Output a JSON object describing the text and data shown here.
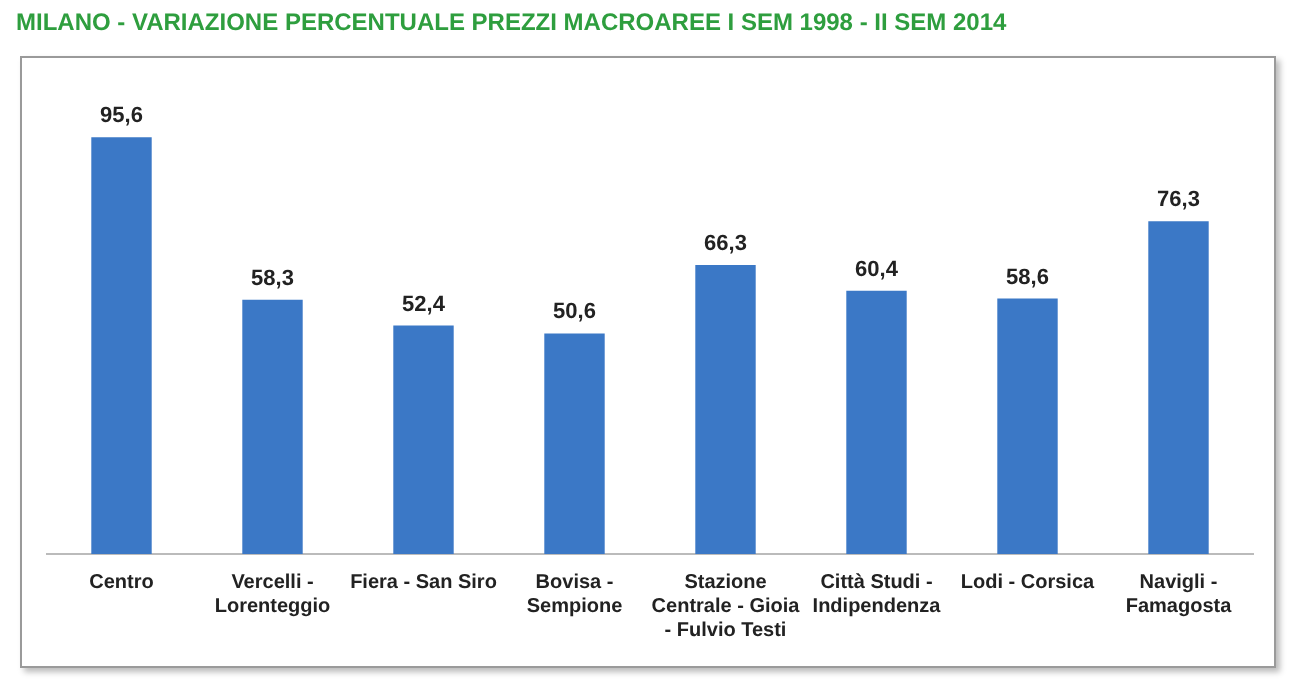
{
  "chart_data": {
    "type": "bar",
    "title": "MILANO - VARIAZIONE PERCENTUALE PREZZI MACROAREE I SEM 1998 - II SEM 2014",
    "categories": [
      "Centro",
      "Vercelli - Lorenteggio",
      "Fiera - San Siro",
      "Bovisa - Sempione",
      "Stazione Centrale - Gioia - Fulvio Testi",
      "Città Studi - Indipendenza",
      "Lodi - Corsica",
      "Navigli - Famagosta"
    ],
    "values": [
      95.6,
      58.3,
      52.4,
      50.6,
      66.3,
      60.4,
      58.6,
      76.3
    ],
    "value_labels": [
      "95,6",
      "58,3",
      "52,4",
      "50,6",
      "66,3",
      "60,4",
      "58,6",
      "76,3"
    ],
    "color": "#3b78c6",
    "grid": false,
    "legend": false
  }
}
